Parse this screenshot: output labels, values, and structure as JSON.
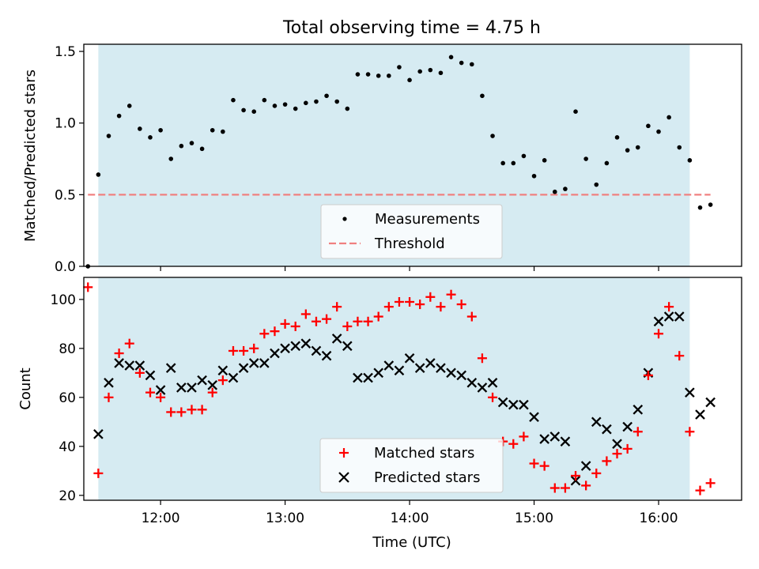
{
  "chart_data": [
    {
      "type": "scatter",
      "title": "Total observing time = 4.75 h",
      "ylabel": "Matched/Predicted stars",
      "xlim": [
        "11:23",
        "16:40"
      ],
      "ylim": [
        0,
        1.55
      ],
      "yticks": [
        "0.0",
        "0.5",
        "1.0",
        "1.5"
      ],
      "shaded_span": [
        "11:30",
        "16:15"
      ],
      "threshold": 0.5,
      "legend": "lower-center",
      "series": [
        {
          "name": "Measurements",
          "marker": "dot",
          "color": "#000000",
          "x": [
            "11:25",
            "11:30",
            "11:35",
            "11:40",
            "11:45",
            "11:50",
            "11:55",
            "12:00",
            "12:05",
            "12:10",
            "12:15",
            "12:20",
            "12:25",
            "12:30",
            "12:35",
            "12:40",
            "12:45",
            "12:50",
            "12:55",
            "13:00",
            "13:05",
            "13:10",
            "13:15",
            "13:20",
            "13:25",
            "13:30",
            "13:35",
            "13:40",
            "13:45",
            "13:50",
            "13:55",
            "14:00",
            "14:05",
            "14:10",
            "14:15",
            "14:20",
            "14:25",
            "14:30",
            "14:35",
            "14:40",
            "14:45",
            "14:50",
            "14:55",
            "15:00",
            "15:05",
            "15:10",
            "15:15",
            "15:20",
            "15:25",
            "15:30",
            "15:35",
            "15:40",
            "15:45",
            "15:50",
            "15:55",
            "16:00",
            "16:05",
            "16:10",
            "16:15",
            "16:20",
            "16:25"
          ],
          "y": [
            0.0,
            0.64,
            0.91,
            1.05,
            1.12,
            0.96,
            0.9,
            0.95,
            0.75,
            0.84,
            0.86,
            0.82,
            0.95,
            0.94,
            1.16,
            1.09,
            1.08,
            1.16,
            1.12,
            1.13,
            1.1,
            1.14,
            1.15,
            1.19,
            1.15,
            1.1,
            1.34,
            1.34,
            1.33,
            1.33,
            1.39,
            1.3,
            1.36,
            1.37,
            1.35,
            1.46,
            1.42,
            1.41,
            1.19,
            0.91,
            0.72,
            0.72,
            0.77,
            0.63,
            0.74,
            0.52,
            0.54,
            1.08,
            0.75,
            0.57,
            0.72,
            0.9,
            0.81,
            0.83,
            0.98,
            0.94,
            1.04,
            0.83,
            0.74,
            0.41,
            0.43
          ]
        },
        {
          "name": "Threshold",
          "style": "dashed",
          "color": "#f08080",
          "x": [
            "11:25",
            "16:25"
          ],
          "y": [
            0.5,
            0.5
          ]
        }
      ]
    },
    {
      "type": "scatter",
      "xlabel": "Time (UTC)",
      "ylabel": "Count",
      "xlim": [
        "11:23",
        "16:40"
      ],
      "ylim": [
        18,
        109
      ],
      "xticks": [
        "12:00",
        "13:00",
        "14:00",
        "15:00",
        "16:00"
      ],
      "yticks": [
        "20",
        "40",
        "60",
        "80",
        "100"
      ],
      "shaded_span": [
        "11:30",
        "16:15"
      ],
      "legend": "lower-center",
      "series": [
        {
          "name": "Matched stars",
          "marker": "plus",
          "color": "#ff0000",
          "x": [
            "11:25",
            "11:30",
            "11:35",
            "11:40",
            "11:45",
            "11:50",
            "11:55",
            "12:00",
            "12:05",
            "12:10",
            "12:15",
            "12:20",
            "12:25",
            "12:30",
            "12:35",
            "12:40",
            "12:45",
            "12:50",
            "12:55",
            "13:00",
            "13:05",
            "13:10",
            "13:15",
            "13:20",
            "13:25",
            "13:30",
            "13:35",
            "13:40",
            "13:45",
            "13:50",
            "13:55",
            "14:00",
            "14:05",
            "14:10",
            "14:15",
            "14:20",
            "14:25",
            "14:30",
            "14:35",
            "14:40",
            "14:45",
            "14:50",
            "14:55",
            "15:00",
            "15:05",
            "15:10",
            "15:15",
            "15:20",
            "15:25",
            "15:30",
            "15:35",
            "15:40",
            "15:45",
            "15:50",
            "15:55",
            "16:00",
            "16:05",
            "16:10",
            "16:15",
            "16:20",
            "16:25"
          ],
          "y": [
            105,
            29,
            60,
            78,
            82,
            70,
            62,
            60,
            54,
            54,
            55,
            55,
            62,
            67,
            79,
            79,
            80,
            86,
            87,
            90,
            89,
            94,
            91,
            92,
            97,
            89,
            91,
            91,
            93,
            97,
            99,
            99,
            98,
            101,
            97,
            102,
            98,
            93,
            76,
            60,
            42,
            41,
            44,
            33,
            32,
            23,
            23,
            28,
            24,
            29,
            34,
            37,
            39,
            46,
            69,
            86,
            97,
            77,
            46,
            22,
            25
          ]
        },
        {
          "name": "Predicted stars",
          "marker": "x",
          "color": "#000000",
          "x": [
            "11:30",
            "11:35",
            "11:40",
            "11:45",
            "11:50",
            "11:55",
            "12:00",
            "12:05",
            "12:10",
            "12:15",
            "12:20",
            "12:25",
            "12:30",
            "12:35",
            "12:40",
            "12:45",
            "12:50",
            "12:55",
            "13:00",
            "13:05",
            "13:10",
            "13:15",
            "13:20",
            "13:25",
            "13:30",
            "13:35",
            "13:40",
            "13:45",
            "13:50",
            "13:55",
            "14:00",
            "14:05",
            "14:10",
            "14:15",
            "14:20",
            "14:25",
            "14:30",
            "14:35",
            "14:40",
            "14:45",
            "14:50",
            "14:55",
            "15:00",
            "15:05",
            "15:10",
            "15:15",
            "15:20",
            "15:25",
            "15:30",
            "15:35",
            "15:40",
            "15:45",
            "15:50",
            "15:55",
            "16:00",
            "16:05",
            "16:10",
            "16:15",
            "16:20",
            "16:25"
          ],
          "y": [
            45,
            66,
            74,
            73,
            73,
            69,
            63,
            72,
            64,
            64,
            67,
            65,
            71,
            68,
            72,
            74,
            74,
            78,
            80,
            81,
            82,
            79,
            77,
            84,
            81,
            68,
            68,
            70,
            73,
            71,
            76,
            72,
            74,
            72,
            70,
            69,
            66,
            64,
            66,
            58,
            57,
            57,
            52,
            43,
            44,
            42,
            26,
            32,
            50,
            47,
            41,
            48,
            55,
            70,
            91,
            93,
            93,
            62,
            53,
            58
          ]
        }
      ]
    }
  ]
}
